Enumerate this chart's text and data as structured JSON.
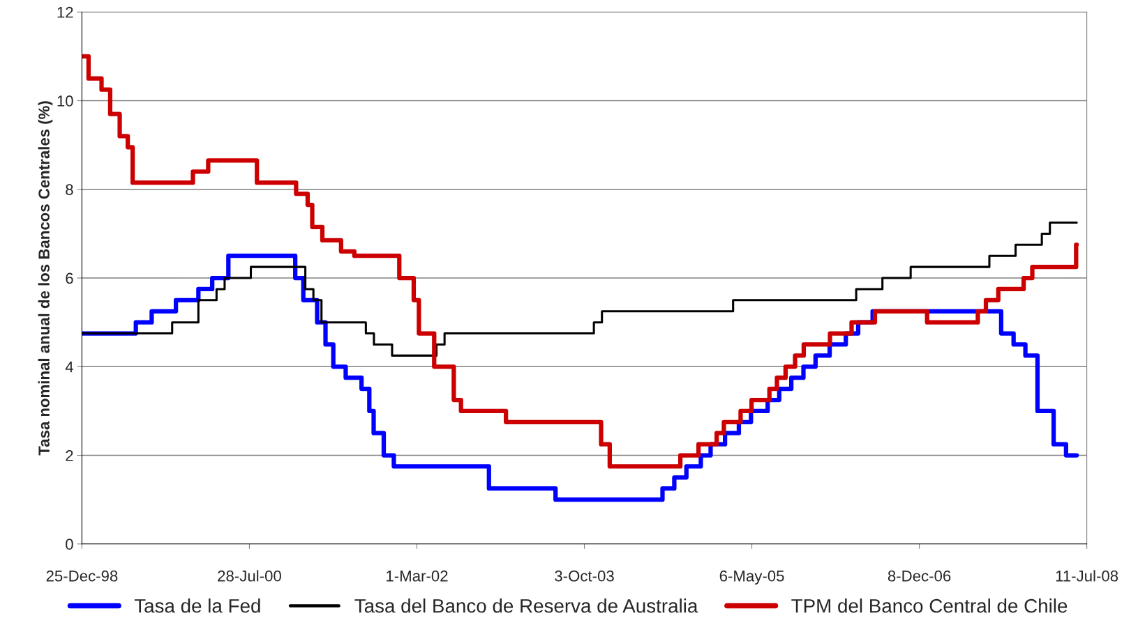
{
  "chart_data": {
    "type": "step",
    "ylabel": "Tasa nominal anual de los Bancos Centrales (%)",
    "xlim": [
      "1998-12-25",
      "2008-07-11"
    ],
    "xticks": [
      {
        "value": "1998-12-25",
        "label": "25-Dec-98"
      },
      {
        "value": "2000-07-28",
        "label": "28-Jul-00"
      },
      {
        "value": "2002-03-01",
        "label": "1-Mar-02"
      },
      {
        "value": "2003-10-03",
        "label": "3-Oct-03"
      },
      {
        "value": "2005-05-06",
        "label": "6-May-05"
      },
      {
        "value": "2006-12-08",
        "label": "8-Dec-06"
      },
      {
        "value": "2008-07-11",
        "label": "11-Jul-08"
      }
    ],
    "ylim": [
      0,
      12
    ],
    "yticks": [
      0,
      2,
      4,
      6,
      8,
      10,
      12
    ],
    "grid": "y",
    "legend": "bottom",
    "marker": "none",
    "line_style": "solid",
    "series": [
      {
        "name": "Tasa de la Fed",
        "color": "#0000ff",
        "x": [
          "1998-12-25",
          "1999-06-30",
          "1999-08-24",
          "1999-11-16",
          "2000-02-02",
          "2000-03-21",
          "2000-05-16",
          "2001-01-03",
          "2001-01-31",
          "2001-03-20",
          "2001-04-18",
          "2001-05-15",
          "2001-06-27",
          "2001-08-21",
          "2001-09-17",
          "2001-10-02",
          "2001-11-06",
          "2001-12-11",
          "2002-11-06",
          "2003-06-25",
          "2004-06-30",
          "2004-08-10",
          "2004-09-21",
          "2004-11-10",
          "2004-12-14",
          "2005-02-02",
          "2005-03-22",
          "2005-05-03",
          "2005-06-30",
          "2005-08-09",
          "2005-09-20",
          "2005-11-01",
          "2005-12-13",
          "2006-01-31",
          "2006-03-28",
          "2006-05-10",
          "2006-06-29",
          "2007-09-18",
          "2007-10-31",
          "2007-12-11",
          "2008-01-22",
          "2008-03-18",
          "2008-04-30",
          "2008-06-06"
        ],
        "values": [
          4.75,
          5.0,
          5.25,
          5.5,
          5.75,
          6.0,
          6.5,
          6.0,
          5.5,
          5.0,
          4.5,
          4.0,
          3.75,
          3.5,
          3.0,
          2.5,
          2.0,
          1.75,
          1.25,
          1.0,
          1.25,
          1.5,
          1.75,
          2.0,
          2.25,
          2.5,
          2.75,
          3.0,
          3.25,
          3.5,
          3.75,
          4.0,
          4.25,
          4.5,
          4.75,
          5.0,
          5.25,
          4.75,
          4.5,
          4.25,
          3.0,
          2.25,
          2.0,
          2.0
        ]
      },
      {
        "name": "Tasa del Banco de Reserva de Australia",
        "color": "#000000",
        "x": [
          "1998-12-25",
          "1999-11-03",
          "2000-02-02",
          "2000-04-05",
          "2000-05-03",
          "2000-08-02",
          "2001-02-07",
          "2001-03-07",
          "2001-04-04",
          "2001-09-05",
          "2001-10-03",
          "2001-12-05",
          "2002-05-08",
          "2002-06-05",
          "2003-11-05",
          "2003-12-03",
          "2005-03-02",
          "2006-05-03",
          "2006-08-02",
          "2006-11-08",
          "2007-08-08",
          "2007-11-07",
          "2008-02-06",
          "2008-03-05",
          "2008-06-06"
        ],
        "values": [
          4.75,
          5.0,
          5.5,
          5.75,
          6.0,
          6.25,
          5.75,
          5.5,
          5.0,
          4.75,
          4.5,
          4.25,
          4.5,
          4.75,
          5.0,
          5.25,
          5.5,
          5.75,
          6.0,
          6.25,
          6.5,
          6.75,
          7.0,
          7.25,
          7.25
        ]
      },
      {
        "name": "TPM del Banco Central de Chile",
        "color": "#cc0000",
        "x": [
          "1998-12-25",
          "1999-01-17",
          "1999-03-03",
          "1999-04-02",
          "1999-05-05",
          "1999-06-02",
          "1999-06-19",
          "2000-01-14",
          "2000-03-07",
          "2000-08-23",
          "2001-01-06",
          "2001-02-15",
          "2001-03-03",
          "2001-04-07",
          "2001-06-11",
          "2001-07-27",
          "2001-12-30",
          "2002-02-18",
          "2002-03-08",
          "2002-04-30",
          "2002-07-07",
          "2002-08-01",
          "2003-01-04",
          "2003-11-30",
          "2003-12-30",
          "2004-08-31",
          "2004-11-02",
          "2005-01-04",
          "2005-01-29",
          "2005-03-28",
          "2005-05-05",
          "2005-07-06",
          "2005-08-01",
          "2005-08-31",
          "2005-10-03",
          "2005-11-02",
          "2006-02-01",
          "2006-04-17",
          "2006-07-07",
          "2007-01-04",
          "2007-06-29",
          "2007-07-27",
          "2007-09-08",
          "2007-12-05",
          "2008-01-04",
          "2008-06-04",
          "2008-06-06"
        ],
        "values": [
          11.0,
          10.5,
          10.25,
          9.7,
          9.2,
          8.95,
          8.15,
          8.4,
          8.65,
          8.15,
          7.9,
          7.65,
          7.15,
          6.85,
          6.6,
          6.5,
          6.0,
          5.5,
          4.75,
          4.0,
          3.25,
          3.0,
          2.75,
          2.25,
          1.75,
          2.0,
          2.25,
          2.5,
          2.75,
          3.0,
          3.25,
          3.5,
          3.75,
          4.0,
          4.25,
          4.5,
          4.75,
          5.0,
          5.25,
          5.0,
          5.25,
          5.5,
          5.75,
          6.0,
          6.25,
          6.75,
          6.75
        ]
      }
    ]
  }
}
